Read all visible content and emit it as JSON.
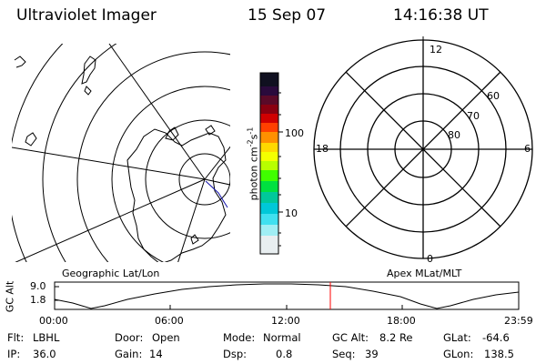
{
  "header": {
    "instrument": "Ultraviolet Imager",
    "date": "15 Sep 07",
    "time": "14:16:38 UT"
  },
  "colorbar": {
    "unit_label": "photon cm",
    "unit_sup1": "-2",
    "unit_mid": "s",
    "unit_sup2": "-1",
    "ticks": [
      "100",
      "10"
    ]
  },
  "left_panel": {
    "caption": "Geographic Lat/Lon"
  },
  "right_panel": {
    "caption": "Apex MLat/MLT",
    "mlt_labels": {
      "top": "12",
      "left": "18",
      "right": "6",
      "bottom": "0"
    },
    "lat_labels": [
      "60",
      "70",
      "80"
    ]
  },
  "altitude_plot": {
    "ylabel": "GC Alt",
    "yticks": [
      "9.0",
      "1.8"
    ],
    "xticks": [
      "00:00",
      "06:00",
      "12:00",
      "18:00",
      "23:59"
    ],
    "marker_color": "#ff0000"
  },
  "status": {
    "filter_label": "Flt:",
    "filter": "LBHL",
    "ip_label": "IP:",
    "ip": "36.0",
    "door_label": "Door:",
    "door": "Open",
    "gain_label": "Gain:",
    "gain": "14",
    "mode_label": "Mode:",
    "mode": "Normal",
    "dsp_label": "Dsp:",
    "dsp": "0.8",
    "gcalt_label": "GC Alt:",
    "gcalt": "8.2 Re",
    "seq_label": "Seq:",
    "seq": "39",
    "glat_label": "GLat:",
    "glat": "-64.6",
    "glon_label": "GLon:",
    "glon": "138.5"
  }
}
